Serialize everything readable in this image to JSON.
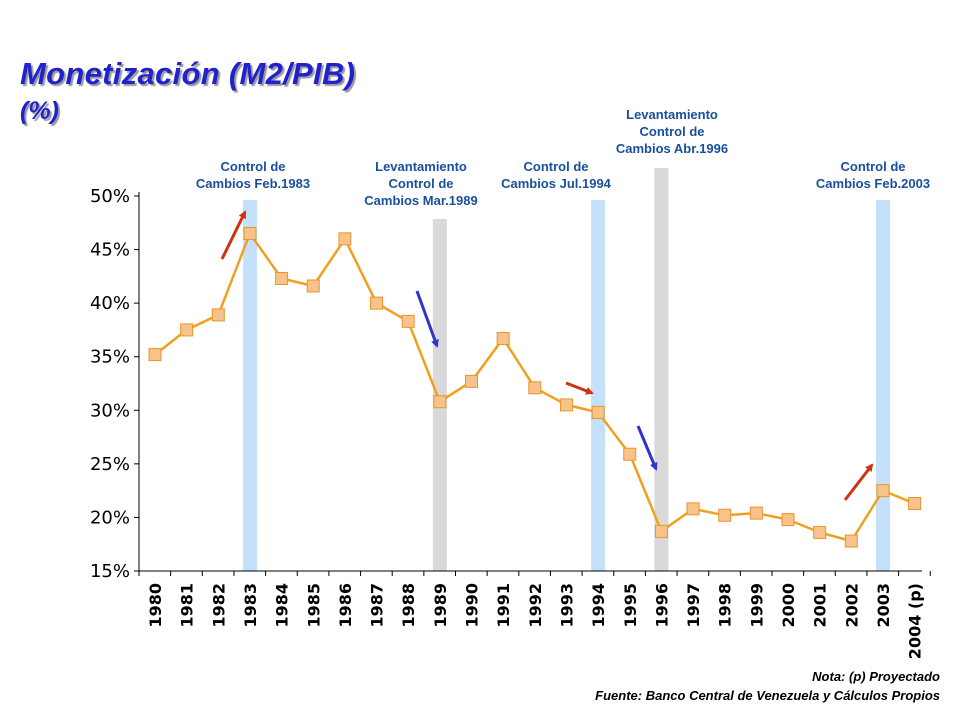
{
  "title": "Monetización (M2/PIB)",
  "subtitle": "(%)",
  "notes": {
    "nota": "Nota: (p) Proyectado",
    "fuente": "Fuente: Banco Central de Venezuela y Cálculos Propios"
  },
  "colors": {
    "line": "#f0a020",
    "marker_fill": "#f7c38a",
    "marker_stroke": "#e8962a",
    "band_control": "#c4e0fa",
    "band_levantamiento": "#d9d9d9",
    "arrow_up": "#cc3311",
    "arrow_down": "#3333cc",
    "annotation_text": "#1a4f9c",
    "title": "#2222cc"
  },
  "chart_data": {
    "type": "line",
    "categories": [
      "1980",
      "1981",
      "1982",
      "1983",
      "1984",
      "1985",
      "1986",
      "1987",
      "1988",
      "1989",
      "1990",
      "1991",
      "1992",
      "1993",
      "1994",
      "1995",
      "1996",
      "1997",
      "1998",
      "1999",
      "2000",
      "2001",
      "2002",
      "2003",
      "2004 (p)"
    ],
    "series": [
      {
        "values": [
          35.2,
          37.5,
          38.9,
          46.5,
          42.3,
          41.6,
          46.0,
          40.0,
          38.3,
          30.8,
          32.7,
          36.7,
          32.1,
          30.5,
          29.8,
          25.9,
          18.7,
          20.8,
          20.2,
          20.4,
          19.8,
          18.6,
          17.8,
          22.5,
          21.3
        ]
      }
    ],
    "y_tick_labels": [
      "15%",
      "20%",
      "25%",
      "30%",
      "35%",
      "40%",
      "45%",
      "50%"
    ],
    "ylim": [
      15,
      50
    ],
    "grid": false,
    "legend": "none",
    "bands": [
      {
        "year_index": 3,
        "kind": "control",
        "label": [
          "Control de",
          "Cambios Feb.1983"
        ],
        "arrow": "up"
      },
      {
        "year_index": 9,
        "kind": "levantamiento",
        "label": [
          "Levantamiento",
          "Control de",
          "Cambios Mar.1989"
        ],
        "arrow": "down"
      },
      {
        "year_index": 14,
        "kind": "control",
        "label": [
          "Control de",
          "Cambios Jul.1994"
        ],
        "arrow": "right"
      },
      {
        "year_index": 16,
        "kind": "levantamiento",
        "label": [
          "Levantamiento",
          "Control de",
          "Cambios Abr.1996"
        ],
        "arrow": "down"
      },
      {
        "year_index": 23,
        "kind": "control",
        "label": [
          "Control de",
          "Cambios Feb.2003"
        ],
        "arrow": "up"
      }
    ]
  }
}
